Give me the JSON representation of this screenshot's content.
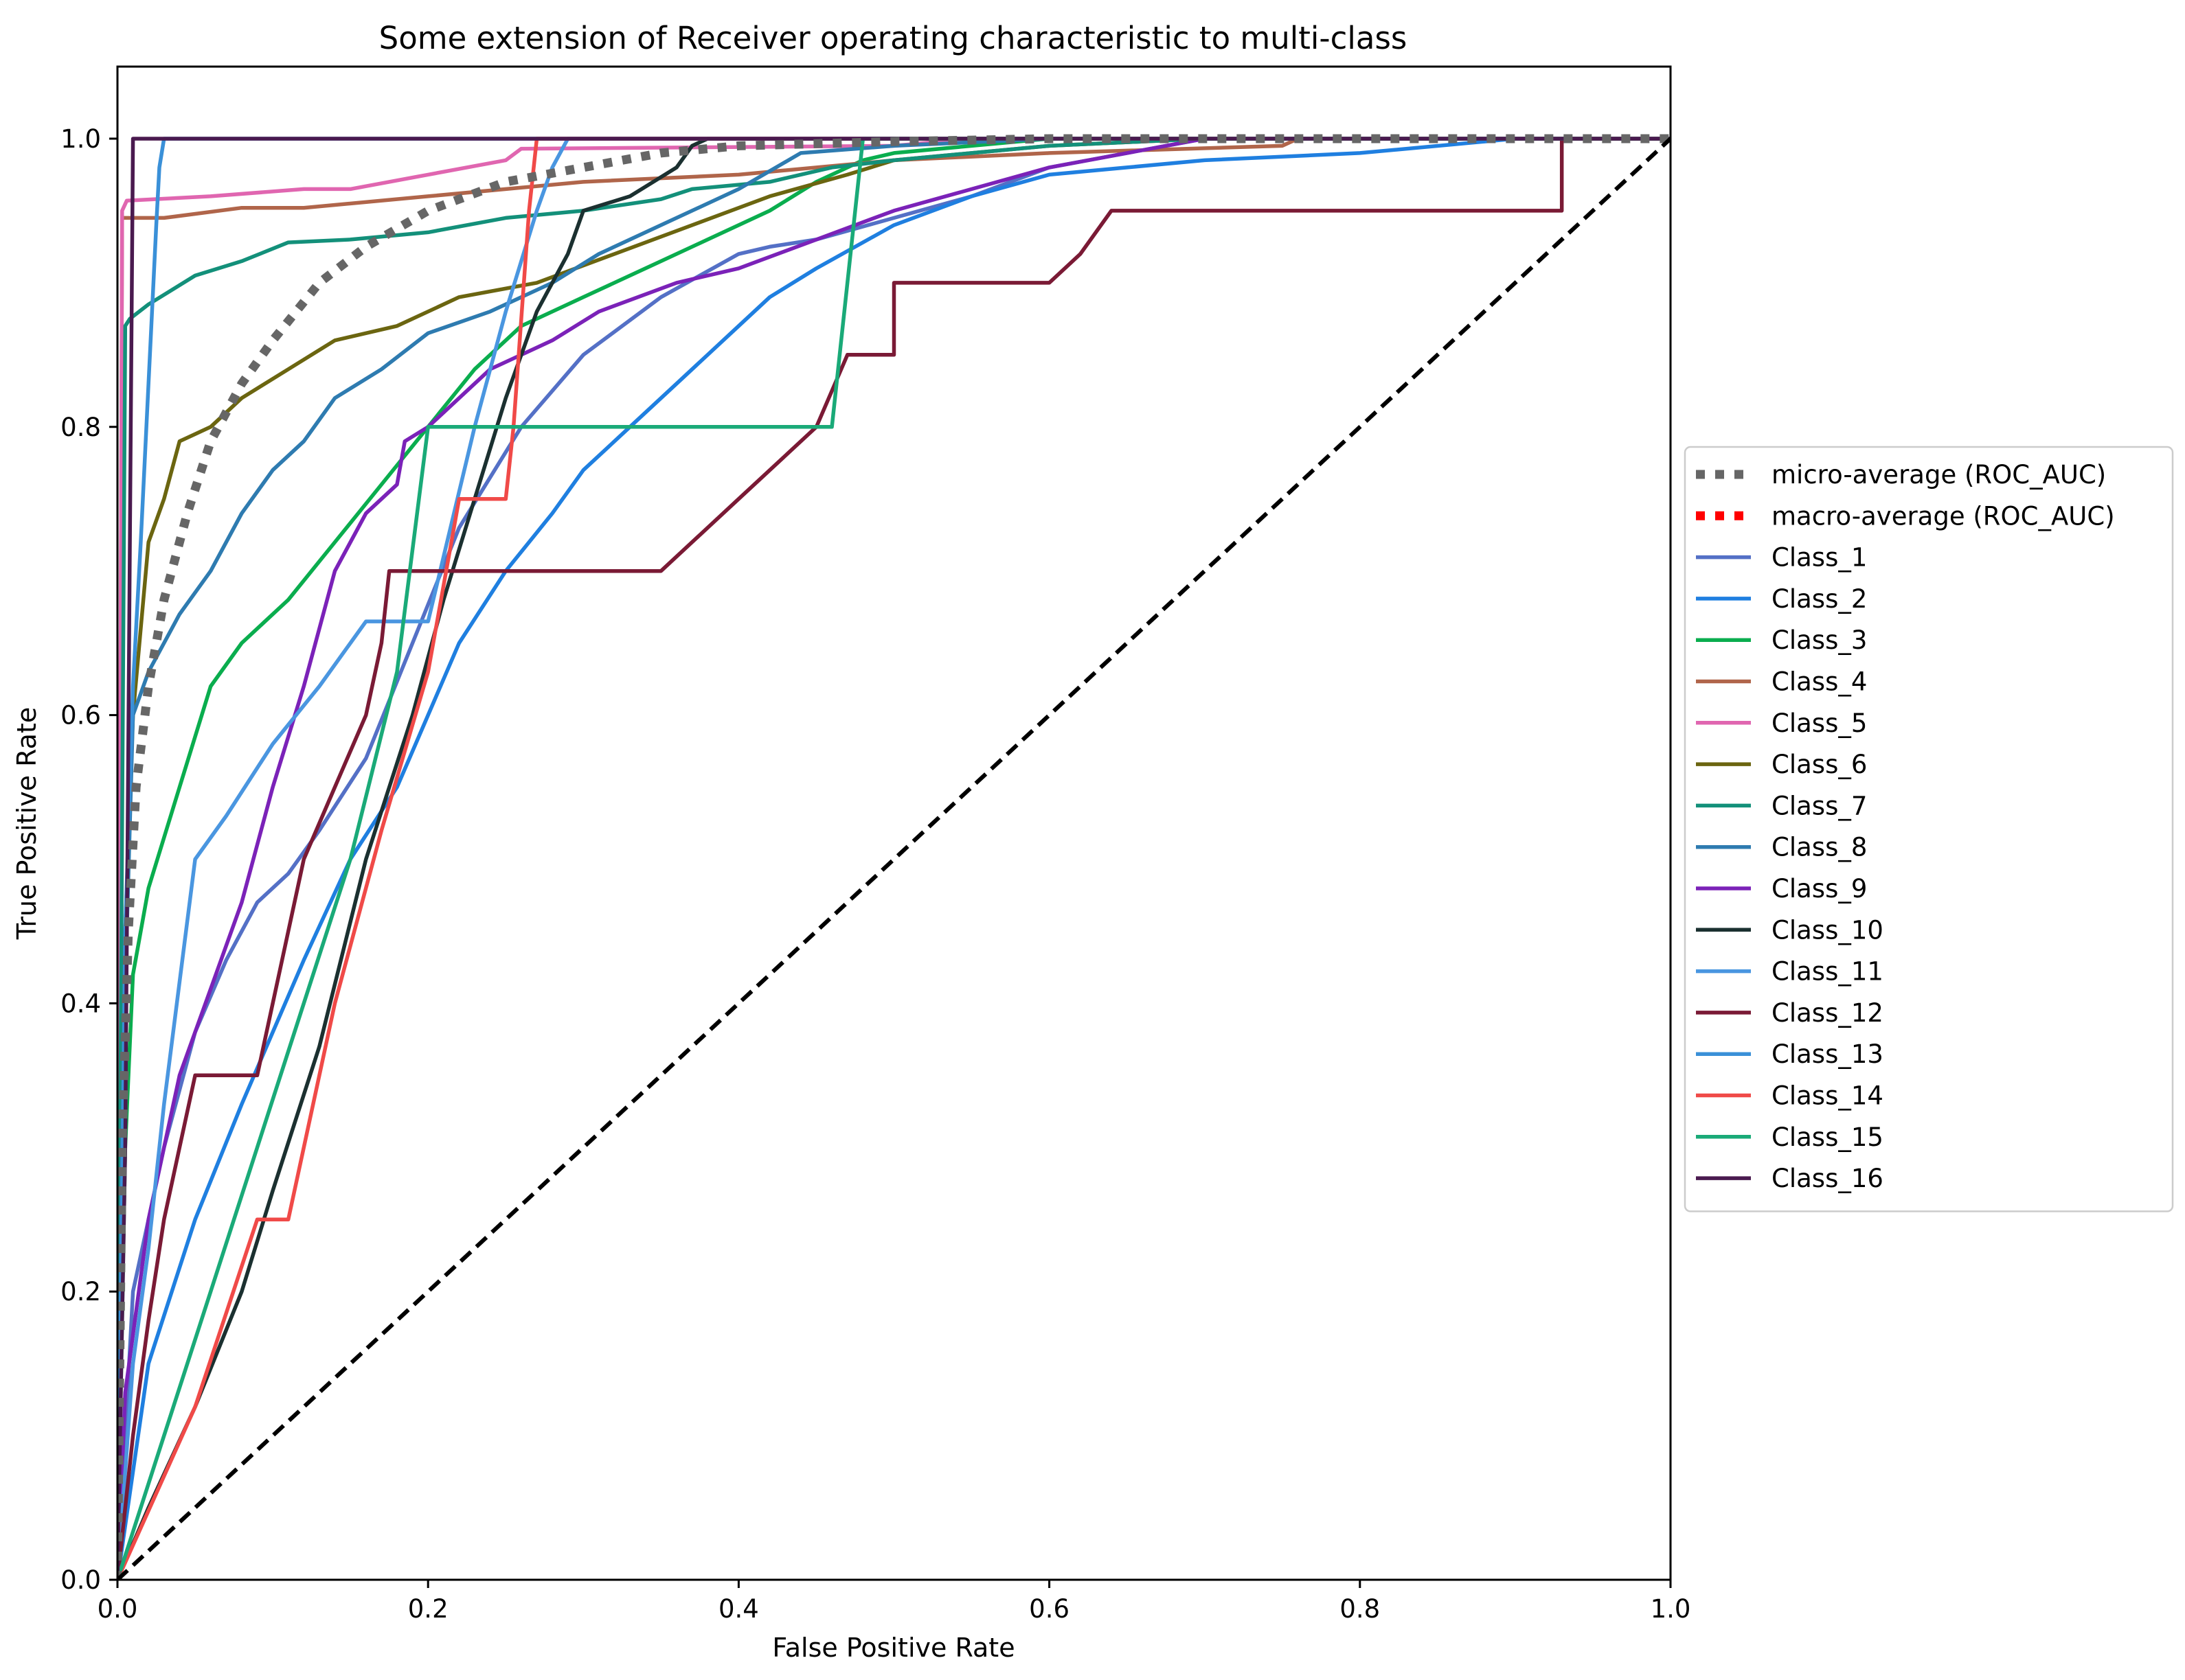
{
  "chart_data": {
    "type": "line",
    "title": "Some extension of Receiver operating characteristic to multi-class",
    "xlabel": "False Positive Rate",
    "ylabel": "True Positive Rate",
    "xlim": [
      0.0,
      1.0
    ],
    "ylim": [
      0.0,
      1.05
    ],
    "xticks": [
      "0.0",
      "0.2",
      "0.4",
      "0.6",
      "0.8",
      "1.0"
    ],
    "yticks": [
      "0.0",
      "0.2",
      "0.4",
      "0.6",
      "0.8",
      "1.0"
    ],
    "grid": false,
    "legend_position": "center-right-outside",
    "series": [
      {
        "name": "micro-average (ROC_AUC)",
        "color": "#666666",
        "style": "dotted",
        "x": [
          0.0,
          0.003,
          0.007,
          0.012,
          0.02,
          0.03,
          0.045,
          0.06,
          0.08,
          0.1,
          0.13,
          0.16,
          0.2,
          0.25,
          0.3,
          0.35,
          0.4,
          0.5,
          0.6,
          0.8,
          1.0
        ],
        "y": [
          0.0,
          0.3,
          0.45,
          0.55,
          0.62,
          0.68,
          0.74,
          0.79,
          0.83,
          0.86,
          0.9,
          0.925,
          0.95,
          0.97,
          0.98,
          0.99,
          0.995,
          0.998,
          1.0,
          1.0,
          1.0
        ]
      },
      {
        "name": "macro-average (ROC_AUC)",
        "color": "#ff0000",
        "style": "dotted",
        "x": [],
        "y": []
      },
      {
        "name": "Class_1",
        "color": "#5470c6",
        "style": "solid",
        "x": [
          0.0,
          0.01,
          0.03,
          0.05,
          0.07,
          0.09,
          0.11,
          0.13,
          0.16,
          0.19,
          0.22,
          0.26,
          0.3,
          0.35,
          0.4,
          0.42,
          0.45,
          0.5,
          0.55,
          0.6,
          0.65,
          0.7,
          1.0
        ],
        "y": [
          0.0,
          0.2,
          0.3,
          0.38,
          0.43,
          0.47,
          0.49,
          0.52,
          0.57,
          0.65,
          0.73,
          0.8,
          0.85,
          0.89,
          0.92,
          0.925,
          0.93,
          0.945,
          0.96,
          0.98,
          0.99,
          1.0,
          1.0
        ]
      },
      {
        "name": "Class_2",
        "color": "#1f7fe0",
        "style": "solid",
        "x": [
          0.0,
          0.02,
          0.05,
          0.08,
          0.1,
          0.12,
          0.15,
          0.18,
          0.2,
          0.22,
          0.25,
          0.28,
          0.3,
          0.33,
          0.36,
          0.4,
          0.42,
          0.45,
          0.5,
          0.55,
          0.6,
          0.65,
          0.7,
          0.8,
          0.9,
          1.0
        ],
        "y": [
          0.0,
          0.15,
          0.25,
          0.33,
          0.38,
          0.43,
          0.5,
          0.55,
          0.6,
          0.65,
          0.7,
          0.74,
          0.77,
          0.8,
          0.83,
          0.87,
          0.89,
          0.91,
          0.94,
          0.96,
          0.975,
          0.98,
          0.985,
          0.99,
          1.0,
          1.0
        ]
      },
      {
        "name": "Class_3",
        "color": "#0aad4e",
        "style": "solid",
        "x": [
          0.0,
          0.005,
          0.01,
          0.02,
          0.04,
          0.06,
          0.08,
          0.11,
          0.14,
          0.17,
          0.2,
          0.23,
          0.26,
          0.3,
          0.34,
          0.38,
          0.42,
          0.45,
          0.48,
          0.5,
          0.55,
          0.6,
          0.7,
          1.0
        ],
        "y": [
          0.0,
          0.3,
          0.42,
          0.48,
          0.55,
          0.62,
          0.65,
          0.68,
          0.72,
          0.76,
          0.8,
          0.84,
          0.87,
          0.89,
          0.91,
          0.93,
          0.95,
          0.97,
          0.985,
          0.99,
          0.995,
          1.0,
          1.0,
          1.0
        ]
      },
      {
        "name": "Class_4",
        "color": "#b0654a",
        "style": "solid",
        "x": [
          0.0,
          0.003,
          0.03,
          0.08,
          0.12,
          0.2,
          0.25,
          0.3,
          0.4,
          0.5,
          0.6,
          0.75,
          0.76,
          1.0
        ],
        "y": [
          0.0,
          0.945,
          0.945,
          0.952,
          0.952,
          0.96,
          0.965,
          0.97,
          0.975,
          0.985,
          0.99,
          0.995,
          1.0,
          1.0
        ]
      },
      {
        "name": "Class_5",
        "color": "#e066b0",
        "style": "solid",
        "x": [
          0.0,
          0.003,
          0.006,
          0.06,
          0.12,
          0.15,
          0.2,
          0.25,
          0.26,
          0.5,
          0.55,
          0.8,
          1.0
        ],
        "y": [
          0.0,
          0.95,
          0.957,
          0.96,
          0.965,
          0.965,
          0.975,
          0.985,
          0.993,
          0.995,
          1.0,
          1.0,
          1.0
        ]
      },
      {
        "name": "Class_6",
        "color": "#6b6510",
        "style": "solid",
        "x": [
          0.0,
          0.005,
          0.01,
          0.02,
          0.03,
          0.04,
          0.06,
          0.08,
          0.11,
          0.14,
          0.18,
          0.22,
          0.27,
          0.32,
          0.37,
          0.42,
          0.47,
          0.5,
          0.55,
          0.6,
          0.7,
          1.0
        ],
        "y": [
          0.0,
          0.45,
          0.6,
          0.72,
          0.75,
          0.79,
          0.8,
          0.82,
          0.84,
          0.86,
          0.87,
          0.89,
          0.9,
          0.92,
          0.94,
          0.96,
          0.975,
          0.985,
          0.99,
          0.995,
          1.0,
          1.0
        ]
      },
      {
        "name": "Class_7",
        "color": "#13907a",
        "style": "solid",
        "x": [
          0.0,
          0.005,
          0.008,
          0.02,
          0.05,
          0.08,
          0.11,
          0.15,
          0.2,
          0.25,
          0.3,
          0.35,
          0.37,
          0.42,
          0.46,
          0.5,
          0.55,
          0.6,
          0.7,
          0.8,
          1.0
        ],
        "y": [
          0.0,
          0.87,
          0.875,
          0.885,
          0.905,
          0.915,
          0.928,
          0.93,
          0.935,
          0.945,
          0.95,
          0.958,
          0.965,
          0.97,
          0.98,
          0.985,
          0.99,
          0.995,
          1.0,
          1.0,
          1.0
        ]
      },
      {
        "name": "Class_8",
        "color": "#2e7bb0",
        "style": "solid",
        "x": [
          0.0,
          0.003,
          0.006,
          0.01,
          0.02,
          0.04,
          0.06,
          0.08,
          0.1,
          0.12,
          0.14,
          0.17,
          0.2,
          0.24,
          0.28,
          0.31,
          0.35,
          0.4,
          0.44,
          0.5,
          0.6,
          0.8,
          1.0
        ],
        "y": [
          0.0,
          0.3,
          0.45,
          0.6,
          0.63,
          0.67,
          0.7,
          0.74,
          0.77,
          0.79,
          0.82,
          0.84,
          0.865,
          0.88,
          0.9,
          0.92,
          0.94,
          0.965,
          0.99,
          0.995,
          1.0,
          1.0,
          1.0
        ]
      },
      {
        "name": "Class_9",
        "color": "#7b22b8",
        "style": "solid",
        "x": [
          0.0,
          0.005,
          0.02,
          0.04,
          0.06,
          0.08,
          0.1,
          0.12,
          0.14,
          0.16,
          0.18,
          0.185,
          0.2,
          0.24,
          0.28,
          0.31,
          0.36,
          0.4,
          0.45,
          0.5,
          0.55,
          0.6,
          0.65,
          0.7,
          1.0
        ],
        "y": [
          0.0,
          0.13,
          0.25,
          0.35,
          0.41,
          0.47,
          0.55,
          0.62,
          0.7,
          0.74,
          0.76,
          0.79,
          0.8,
          0.84,
          0.86,
          0.88,
          0.9,
          0.91,
          0.93,
          0.95,
          0.965,
          0.98,
          0.99,
          1.0,
          1.0
        ]
      },
      {
        "name": "Class_10",
        "color": "#1b3030",
        "style": "solid",
        "x": [
          0.0,
          0.02,
          0.05,
          0.08,
          0.1,
          0.13,
          0.16,
          0.19,
          0.21,
          0.23,
          0.25,
          0.27,
          0.29,
          0.3,
          0.33,
          0.36,
          0.37,
          0.38,
          1.0
        ],
        "y": [
          0.0,
          0.05,
          0.12,
          0.2,
          0.27,
          0.37,
          0.5,
          0.6,
          0.68,
          0.75,
          0.82,
          0.88,
          0.92,
          0.95,
          0.96,
          0.98,
          0.995,
          1.0,
          1.0
        ]
      },
      {
        "name": "Class_11",
        "color": "#4a96e0",
        "style": "solid",
        "x": [
          0.0,
          0.01,
          0.02,
          0.03,
          0.05,
          0.07,
          0.1,
          0.13,
          0.16,
          0.2,
          0.21,
          0.23,
          0.25,
          0.27,
          0.28,
          0.29,
          1.0
        ],
        "y": [
          0.0,
          0.15,
          0.23,
          0.33,
          0.5,
          0.53,
          0.58,
          0.62,
          0.665,
          0.665,
          0.71,
          0.8,
          0.88,
          0.95,
          0.98,
          1.0,
          1.0
        ]
      },
      {
        "name": "Class_12",
        "color": "#7a1a35",
        "style": "solid",
        "x": [
          0.0,
          0.01,
          0.02,
          0.03,
          0.04,
          0.05,
          0.09,
          0.11,
          0.12,
          0.14,
          0.16,
          0.17,
          0.175,
          0.35,
          0.4,
          0.45,
          0.47,
          0.5,
          0.5,
          0.55,
          0.6,
          0.62,
          0.64,
          0.75,
          0.9,
          0.93,
          0.93,
          1.0
        ],
        "y": [
          0.0,
          0.1,
          0.18,
          0.25,
          0.3,
          0.35,
          0.35,
          0.45,
          0.5,
          0.55,
          0.6,
          0.65,
          0.7,
          0.7,
          0.75,
          0.8,
          0.85,
          0.85,
          0.9,
          0.9,
          0.9,
          0.92,
          0.95,
          0.95,
          0.95,
          0.95,
          1.0,
          1.0
        ]
      },
      {
        "name": "Class_13",
        "color": "#3a90d8",
        "style": "solid",
        "x": [
          0.0,
          0.005,
          0.01,
          0.015,
          0.02,
          0.025,
          0.027,
          0.03,
          0.05,
          1.0
        ],
        "y": [
          0.0,
          0.45,
          0.62,
          0.72,
          0.83,
          0.94,
          0.98,
          1.0,
          1.0,
          1.0
        ]
      },
      {
        "name": "Class_14",
        "color": "#f04a48",
        "style": "solid",
        "x": [
          0.0,
          0.05,
          0.09,
          0.11,
          0.14,
          0.17,
          0.2,
          0.22,
          0.25,
          0.255,
          0.265,
          0.27,
          0.3,
          1.0
        ],
        "y": [
          0.0,
          0.12,
          0.25,
          0.25,
          0.4,
          0.52,
          0.63,
          0.75,
          0.75,
          0.8,
          0.95,
          1.0,
          1.0,
          1.0
        ]
      },
      {
        "name": "Class_15",
        "color": "#1aaa78",
        "style": "solid",
        "x": [
          0.0,
          0.03,
          0.06,
          0.09,
          0.12,
          0.15,
          0.18,
          0.2,
          0.25,
          0.3,
          0.35,
          0.4,
          0.46,
          0.48,
          0.5,
          1.0
        ],
        "y": [
          0.0,
          0.1,
          0.2,
          0.3,
          0.4,
          0.5,
          0.63,
          0.8,
          0.8,
          0.8,
          0.8,
          0.8,
          0.8,
          1.0,
          1.0,
          1.0
        ]
      },
      {
        "name": "Class_16",
        "color": "#4a1a4f",
        "style": "solid",
        "x": [
          0.0,
          0.005,
          0.01,
          1.0
        ],
        "y": [
          0.0,
          0.3,
          1.0,
          1.0
        ]
      },
      {
        "name": "chance",
        "color": "#000000",
        "style": "dashed",
        "legend": false,
        "x": [
          0.0,
          1.0
        ],
        "y": [
          0.0,
          1.0
        ]
      }
    ]
  }
}
